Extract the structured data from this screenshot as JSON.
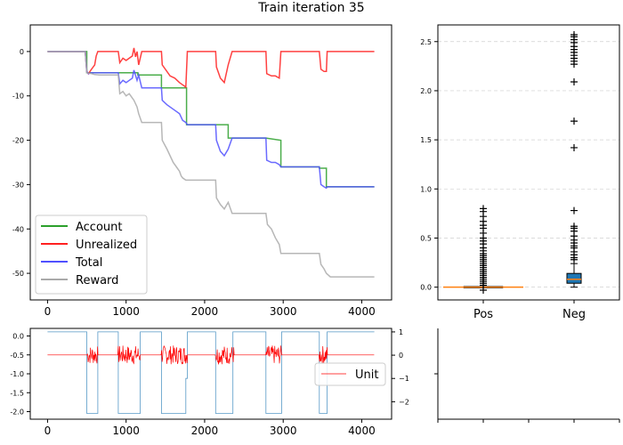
{
  "figure": {
    "suptitle": "Train iteration 35"
  },
  "colors": {
    "account": "#2ca02c",
    "unrealized": "#ff2020",
    "total": "#5050ff",
    "reward": "#aaaaaa",
    "box_fill_neg": "#1f77b4",
    "median": "#ff7f0e",
    "unit_line": "#ff0000",
    "step_line": "#1f77b4"
  },
  "chart_data": [
    {
      "type": "line",
      "title": "",
      "xlabel": "",
      "ylabel": "",
      "xlim": [
        -220,
        4380
      ],
      "ylim": [
        -56,
        6
      ],
      "xticks": [
        0,
        1000,
        2000,
        3000,
        4000
      ],
      "yticks": [
        0,
        -10,
        -20,
        -30,
        -40,
        -50
      ],
      "grid": false,
      "legend": "lower-left",
      "series": [
        {
          "name": "Account",
          "color_key": "account",
          "x": [
            0,
            500,
            500,
            1150,
            1150,
            1450,
            1450,
            1770,
            1770,
            2150,
            2300,
            2300,
            2780,
            2970,
            2970,
            3460,
            3460,
            3550,
            3550,
            4160
          ],
          "y": [
            0,
            0,
            -4.8,
            -4.8,
            -5.3,
            -5.3,
            -8.2,
            -8.2,
            -16.5,
            -16.5,
            -16.5,
            -19.5,
            -19.5,
            -20,
            -26,
            -26,
            -26.3,
            -26.3,
            -30.5,
            -30.5
          ]
        },
        {
          "name": "Unrealized",
          "color_key": "unrealized",
          "x": [
            0,
            480,
            500,
            520,
            560,
            600,
            620,
            640,
            900,
            920,
            960,
            1000,
            1040,
            1080,
            1100,
            1120,
            1140,
            1160,
            1200,
            1450,
            1460,
            1500,
            1560,
            1620,
            1680,
            1720,
            1760,
            1780,
            2140,
            2150,
            2200,
            2250,
            2300,
            2350,
            2780,
            2790,
            2850,
            2900,
            2950,
            2970,
            3460,
            3480,
            3520,
            3550,
            3560,
            4160
          ],
          "y": [
            0,
            0,
            -4.5,
            -5,
            -4,
            -3,
            -1,
            0,
            0,
            -2.5,
            -1.5,
            -2,
            -1.5,
            -1,
            0.8,
            -1.2,
            0,
            -3,
            0,
            0,
            -3,
            -4,
            -5.5,
            -6,
            -7,
            -7.5,
            -8,
            0,
            0,
            -3.5,
            -6,
            -7,
            -3,
            0,
            0,
            -5,
            -5.5,
            -5.5,
            -6,
            0,
            0,
            -4,
            -4.5,
            -4.5,
            0,
            0
          ]
        },
        {
          "name": "Total",
          "color_key": "total",
          "x": [
            0,
            480,
            500,
            520,
            560,
            620,
            640,
            900,
            920,
            960,
            1000,
            1040,
            1080,
            1100,
            1140,
            1160,
            1200,
            1450,
            1460,
            1520,
            1600,
            1680,
            1720,
            1760,
            1780,
            2140,
            2150,
            2200,
            2250,
            2300,
            2350,
            2780,
            2790,
            2850,
            2900,
            2950,
            2970,
            3460,
            3480,
            3520,
            3550,
            3560,
            4160
          ],
          "y": [
            0,
            0,
            -4.5,
            -5,
            -4.8,
            -4.8,
            -4.8,
            -4.8,
            -7.3,
            -6.5,
            -7,
            -6.5,
            -6,
            -4.2,
            -6.5,
            -5.3,
            -8.2,
            -8.2,
            -11,
            -12,
            -13,
            -14,
            -15.5,
            -16,
            -16.5,
            -16.5,
            -20,
            -22.5,
            -23.5,
            -22,
            -19.5,
            -19.5,
            -24.5,
            -25,
            -25,
            -25.5,
            -26,
            -26,
            -30,
            -30.5,
            -30.8,
            -30.5,
            -30.5
          ]
        },
        {
          "name": "Reward",
          "color_key": "reward",
          "x": [
            0,
            480,
            500,
            560,
            600,
            660,
            900,
            920,
            960,
            1000,
            1040,
            1080,
            1100,
            1140,
            1160,
            1200,
            1450,
            1460,
            1520,
            1560,
            1600,
            1640,
            1680,
            1700,
            1720,
            1760,
            1780,
            2140,
            2150,
            2200,
            2250,
            2300,
            2350,
            2400,
            2780,
            2800,
            2850,
            2900,
            2950,
            2970,
            3460,
            3480,
            3520,
            3550,
            3600,
            4160
          ],
          "y": [
            0,
            0,
            -4.8,
            -5,
            -5.2,
            -5.3,
            -5.3,
            -9.5,
            -9,
            -10,
            -9.5,
            -10.5,
            -11,
            -12.5,
            -14,
            -16,
            -16,
            -20,
            -22,
            -23.5,
            -25,
            -26,
            -27,
            -28,
            -28.5,
            -29,
            -29,
            -29,
            -33,
            -34.5,
            -35.5,
            -34,
            -36.5,
            -36.5,
            -36.5,
            -39,
            -40,
            -42,
            -43.5,
            -45.5,
            -45.5,
            -48,
            -49,
            -50,
            -50.8,
            -50.8
          ]
        }
      ]
    },
    {
      "type": "box",
      "title": "",
      "categories": [
        "Pos",
        "Neg"
      ],
      "ylim": [
        -0.13,
        2.67
      ],
      "yticks": [
        "0.0",
        "0.5",
        "1.0",
        "1.5",
        "2.0",
        "2.5"
      ],
      "grid": true,
      "boxes": [
        {
          "name": "Pos",
          "q1": 0.0,
          "median": 0.0,
          "q3": 0.0,
          "whisker_low": 0.0,
          "whisker_high": 0.0,
          "outliers": [
            -0.03,
            0.02,
            0.04,
            0.06,
            0.08,
            0.1,
            0.12,
            0.14,
            0.16,
            0.18,
            0.2,
            0.22,
            0.24,
            0.26,
            0.28,
            0.3,
            0.32,
            0.34,
            0.37,
            0.4,
            0.44,
            0.47,
            0.5,
            0.55,
            0.6,
            0.63,
            0.67,
            0.72,
            0.77,
            0.8
          ]
        },
        {
          "name": "Neg",
          "q1": 0.04,
          "median": 0.08,
          "q3": 0.14,
          "whisker_low": 0.0,
          "whisker_high": 0.24,
          "outliers": [
            0.28,
            0.3,
            0.33,
            0.36,
            0.4,
            0.42,
            0.45,
            0.48,
            0.52,
            0.57,
            0.6,
            0.62,
            0.78,
            1.42,
            1.69,
            2.09,
            2.27,
            2.3,
            2.33,
            2.36,
            2.39,
            2.42,
            2.45,
            2.49,
            2.52,
            2.55,
            2.57
          ]
        }
      ]
    },
    {
      "type": "line",
      "title": "",
      "xlim": [
        -220,
        4380
      ],
      "ylim_left": [
        -2.2,
        0.2
      ],
      "ylim_right": [
        -2.75,
        1.15
      ],
      "xticks": [
        0,
        1000,
        2000,
        3000,
        4000
      ],
      "yticks_left": [
        "0.0",
        "-0.5",
        "-1.0",
        "-1.5",
        "-2.0"
      ],
      "yticks_right": [
        "1",
        "0",
        "−1",
        "−2"
      ],
      "legend": "right",
      "series": [
        {
          "name": "Unit",
          "color_key": "unit_line",
          "axis": "left",
          "baseline": -0.5,
          "noise_ranges": [
            [
              500,
              640
            ],
            [
              900,
              1180
            ],
            [
              1450,
              1780
            ],
            [
              2140,
              2370
            ],
            [
              2780,
              2980
            ],
            [
              3460,
              3560
            ]
          ]
        },
        {
          "name": "",
          "color_key": "step_line",
          "axis": "right",
          "x": [
            0,
            500,
            500,
            640,
            640,
            900,
            900,
            1180,
            1180,
            1450,
            1450,
            1760,
            1760,
            1780,
            1780,
            2140,
            2140,
            2360,
            2360,
            2780,
            2780,
            2980,
            2980,
            3460,
            3460,
            3560,
            3560,
            4160
          ],
          "y": [
            1,
            1,
            -2.5,
            -2.5,
            1,
            1,
            -2.5,
            -2.5,
            1,
            1,
            -2.5,
            -2.5,
            -1,
            -1,
            1,
            1,
            -2.5,
            -2.5,
            1,
            1,
            -2.5,
            -2.5,
            1,
            1,
            -2.5,
            -2.5,
            1,
            1
          ]
        }
      ]
    },
    {
      "type": "empty",
      "xticks": [
        "",
        "",
        "",
        "",
        ""
      ],
      "yticks": [
        "",
        ""
      ]
    }
  ]
}
